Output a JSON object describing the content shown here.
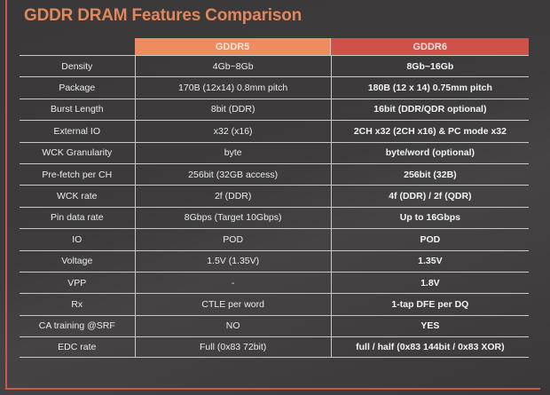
{
  "title": "GDDR DRAM Features Comparison",
  "colors": {
    "title": "#e0875d",
    "gddr5_header": "#f08a60",
    "gddr6_header": "#cf5149",
    "background": "#3d3b3b",
    "frame": "#c9584c"
  },
  "table": {
    "headers": [
      "",
      "GDDR5",
      "GDDR6"
    ],
    "rows": [
      {
        "feature": "Density",
        "gddr5": "4Gb~8Gb",
        "gddr6": "8Gb~16Gb"
      },
      {
        "feature": "Package",
        "gddr5": "170B (12x14) 0.8mm pitch",
        "gddr6": "180B (12 x 14) 0.75mm pitch"
      },
      {
        "feature": "Burst Length",
        "gddr5": "8bit (DDR)",
        "gddr6": "16bit (DDR/QDR optional)"
      },
      {
        "feature": "External IO",
        "gddr5": "x32 (x16)",
        "gddr6": "2CH x32 (2CH x16) & PC mode x32"
      },
      {
        "feature": "WCK Granularity",
        "gddr5": "byte",
        "gddr6": "byte/word (optional)"
      },
      {
        "feature": "Pre-fetch per CH",
        "gddr5": "256bit (32GB access)",
        "gddr6": "256bit (32B)"
      },
      {
        "feature": "WCK rate",
        "gddr5": "2f (DDR)",
        "gddr6": "4f (DDR) / 2f (QDR)"
      },
      {
        "feature": "Pin data rate",
        "gddr5": "8Gbps (Target 10Gbps)",
        "gddr6": "Up to 16Gbps"
      },
      {
        "feature": "IO",
        "gddr5": "POD",
        "gddr6": "POD"
      },
      {
        "feature": "Voltage",
        "gddr5": "1.5V (1.35V)",
        "gddr6": "1.35V"
      },
      {
        "feature": "VPP",
        "gddr5": "-",
        "gddr6": "1.8V"
      },
      {
        "feature": "Rx",
        "gddr5": "CTLE per word",
        "gddr6": "1-tap DFE per DQ"
      },
      {
        "feature": "CA training @SRF",
        "gddr5": "NO",
        "gddr6": "YES"
      },
      {
        "feature": "EDC rate",
        "gddr5": "Full (0x83 72bit)",
        "gddr6": "full / half (0x83 144bit / 0x83 XOR)"
      }
    ]
  }
}
